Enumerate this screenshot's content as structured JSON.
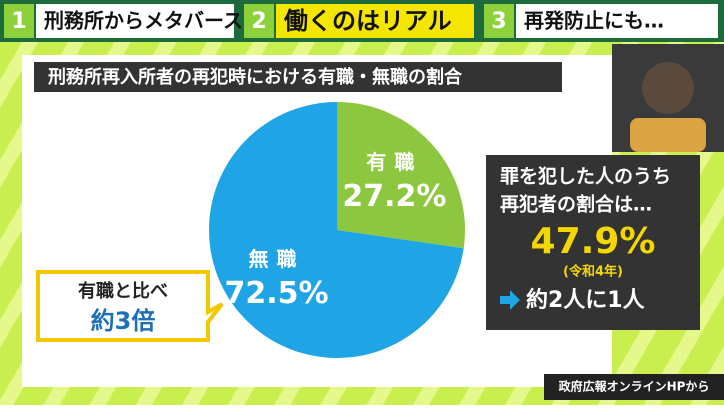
{
  "header": {
    "tabs": [
      {
        "number": "1",
        "label": "刑務所からメタバース"
      },
      {
        "number": "2",
        "label": "働くのはリアル"
      },
      {
        "number": "3",
        "label": "再発防止にも…"
      }
    ]
  },
  "chart_data": {
    "type": "pie",
    "title": "刑務所再入所者の再犯時における有職・無職の割合",
    "categories": [
      "有職",
      "無職"
    ],
    "values": [
      27.2,
      72.5
    ],
    "value_labels": [
      "27.2%",
      "72.5%"
    ],
    "colors": [
      "#8dc63f",
      "#1fa5e6"
    ]
  },
  "callout": {
    "line1": "有職と比べ",
    "line2": "約3倍"
  },
  "info_box": {
    "line1": "罪を犯した人のうち",
    "line2": "再犯者の割合は…",
    "figure": "47.9%",
    "note": "(令和4年)",
    "summary": "約2人に1人"
  },
  "source": "政府広報オンラインHPから"
}
